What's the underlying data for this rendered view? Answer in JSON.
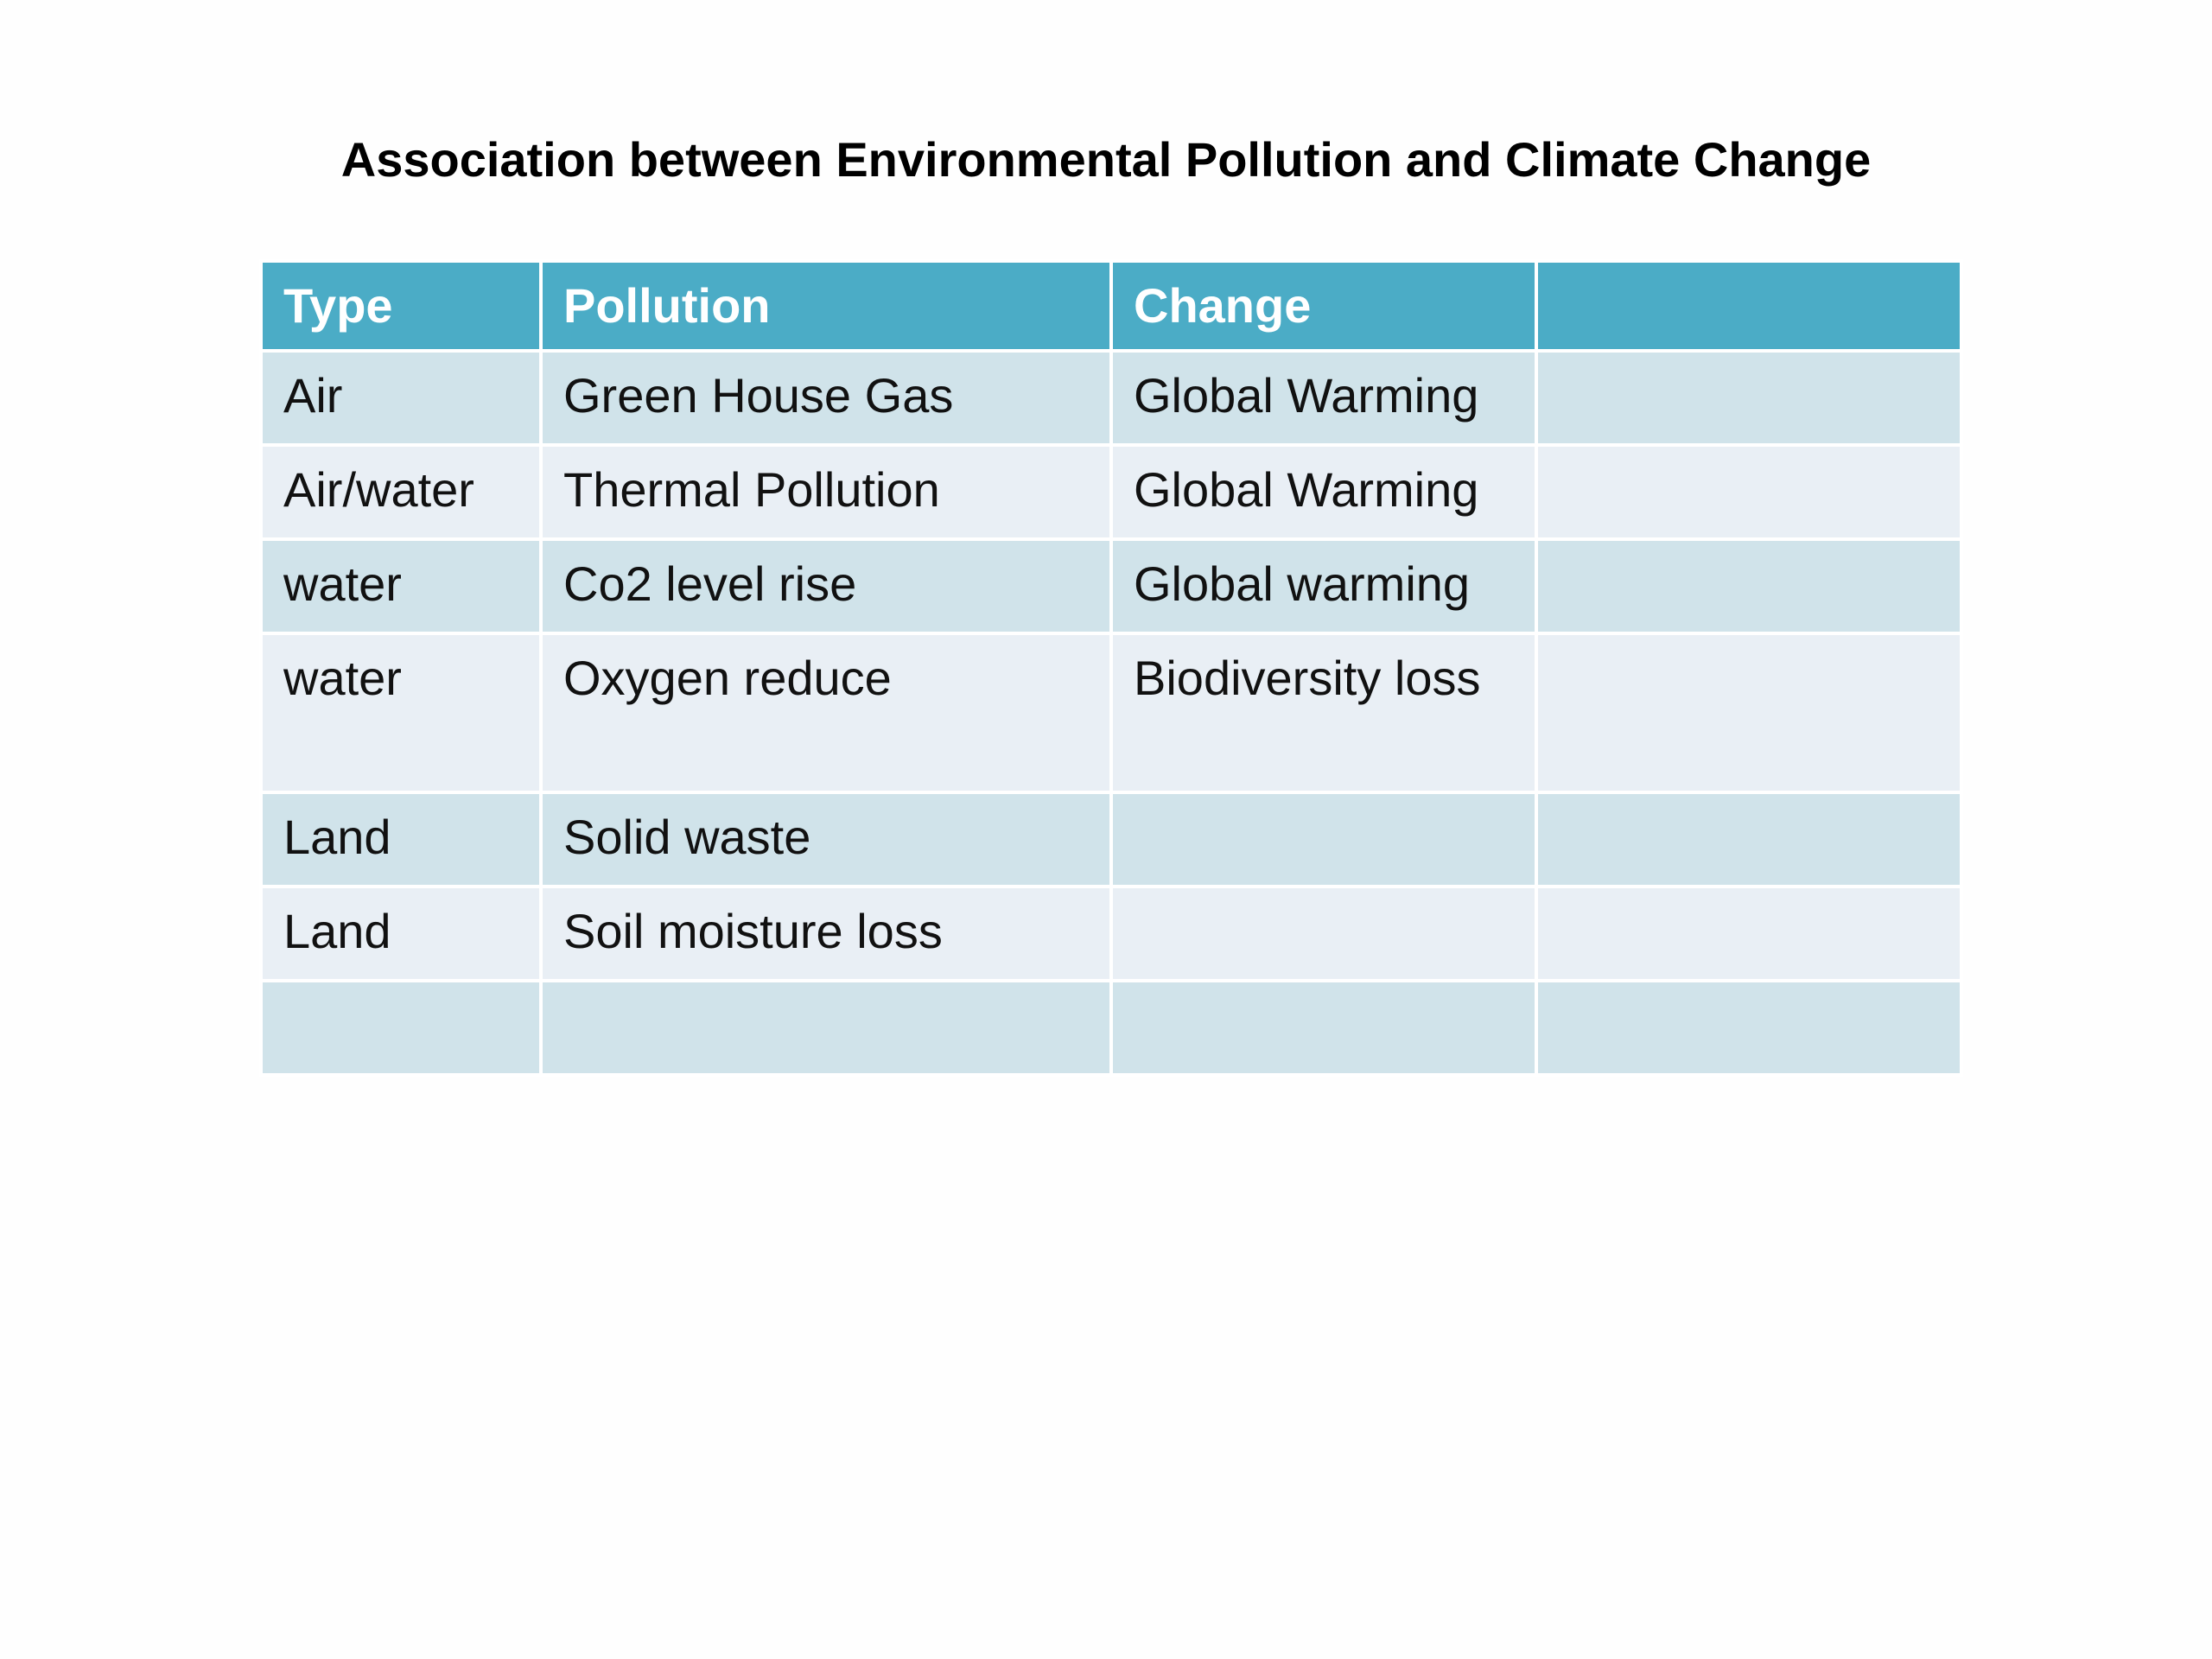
{
  "title": "Association between Environmental Pollution and Climate Change",
  "table": {
    "headers": [
      "Type",
      "Pollution",
      "Change",
      ""
    ],
    "rows": [
      [
        "Air",
        "Green House Gas",
        "Global Warming",
        ""
      ],
      [
        "Air/water",
        "Thermal Pollution",
        "Global Warming",
        ""
      ],
      [
        "water",
        "Co2 level rise",
        "Global warming",
        ""
      ],
      [
        "water",
        "Oxygen reduce",
        "Biodiversity loss",
        ""
      ],
      [
        "Land",
        "Solid waste",
        "",
        ""
      ],
      [
        "Land",
        "Soil moisture loss",
        "",
        ""
      ],
      [
        "",
        "",
        "",
        ""
      ]
    ]
  },
  "colors": {
    "header_bg": "#4bacc6",
    "row_odd_bg": "#d0e3ea",
    "row_even_bg": "#e9eff5",
    "cell_border": "#ffffff"
  }
}
